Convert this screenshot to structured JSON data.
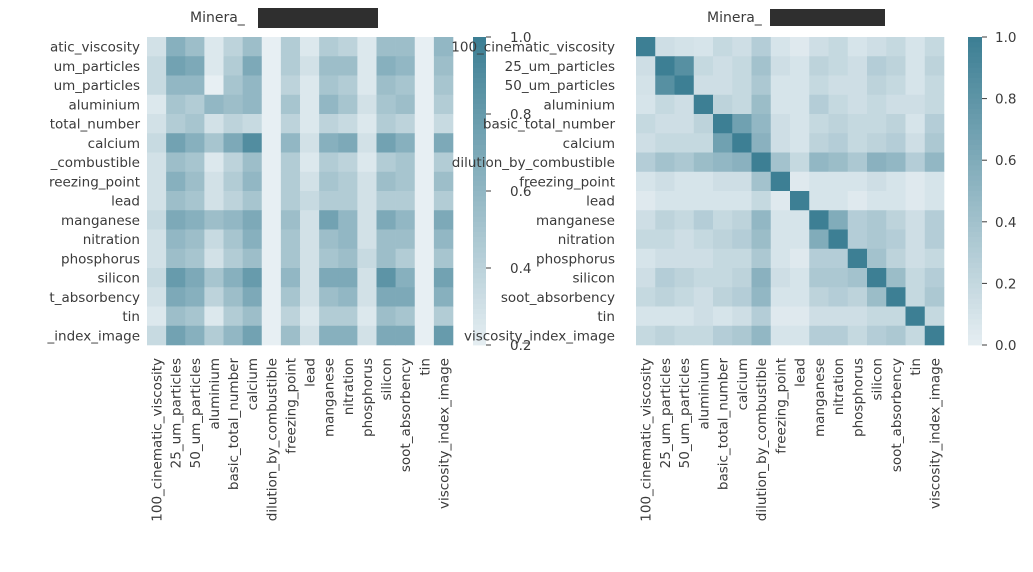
{
  "figure": {
    "background": "#ffffff",
    "panel_bg": "#e7e7f1",
    "color_low": "#e7eff3",
    "color_high": "#3d7f94",
    "title_font_color": "#3b3b3b"
  },
  "chart_data": [
    {
      "type": "heatmap",
      "title": "Minera_",
      "title_redacted": true,
      "rows": [
        "100_cinematic_viscosity",
        "25_um_particles",
        "50_um_particles",
        "aluminium",
        "basic_total_number",
        "calcium",
        "dilution_by_combustible",
        "freezing_point",
        "lead",
        "manganese",
        "nitration",
        "phosphorus",
        "silicon",
        "soot_absorbency",
        "tin",
        "viscosity_index_image"
      ],
      "cols": [
        "100_cinematic_viscosity",
        "25_um_particles",
        "50_um_particles",
        "aluminium",
        "basic_total_number",
        "calcium",
        "dilution_by_combustible",
        "freezing_point",
        "lead",
        "manganese",
        "nitration",
        "phosphorus",
        "silicon",
        "soot_absorbency",
        "tin",
        "viscosity_index_image"
      ],
      "visible_row_labels": [
        "atic_viscosity",
        "um_particles",
        "um_particles",
        "aluminium",
        "total_number",
        "calcium",
        "_combustible",
        "reezing_point",
        "lead",
        "manganese",
        "nitration",
        "phosphorus",
        "silicon",
        "t_absorbency",
        "tin",
        "_index_image"
      ],
      "colorbar": {
        "min": 0.2,
        "max": 1.0,
        "ticks": [
          "0.2",
          "0.4",
          "0.6",
          "0.8",
          "1.0"
        ]
      },
      "values": [
        [
          0.3,
          0.65,
          0.55,
          0.25,
          0.4,
          0.55,
          0.2,
          0.45,
          0.25,
          0.45,
          0.4,
          0.25,
          0.55,
          0.55,
          0.2,
          0.6
        ],
        [
          0.35,
          0.75,
          0.7,
          0.25,
          0.45,
          0.7,
          0.2,
          0.45,
          0.3,
          0.55,
          0.55,
          0.25,
          0.65,
          0.6,
          0.2,
          0.55
        ],
        [
          0.35,
          0.6,
          0.6,
          0.2,
          0.5,
          0.6,
          0.2,
          0.4,
          0.25,
          0.5,
          0.45,
          0.25,
          0.55,
          0.5,
          0.2,
          0.5
        ],
        [
          0.25,
          0.5,
          0.45,
          0.6,
          0.55,
          0.6,
          0.2,
          0.5,
          0.25,
          0.6,
          0.5,
          0.3,
          0.5,
          0.55,
          0.2,
          0.45
        ],
        [
          0.3,
          0.45,
          0.5,
          0.3,
          0.4,
          0.35,
          0.2,
          0.4,
          0.25,
          0.4,
          0.35,
          0.25,
          0.45,
          0.4,
          0.2,
          0.35
        ],
        [
          0.35,
          0.75,
          0.65,
          0.5,
          0.7,
          0.9,
          0.2,
          0.6,
          0.3,
          0.65,
          0.7,
          0.3,
          0.75,
          0.65,
          0.2,
          0.7
        ],
        [
          0.3,
          0.55,
          0.5,
          0.25,
          0.4,
          0.55,
          0.2,
          0.45,
          0.25,
          0.45,
          0.4,
          0.25,
          0.45,
          0.5,
          0.2,
          0.45
        ],
        [
          0.3,
          0.65,
          0.55,
          0.3,
          0.45,
          0.6,
          0.2,
          0.45,
          0.3,
          0.5,
          0.45,
          0.3,
          0.55,
          0.5,
          0.2,
          0.55
        ],
        [
          0.3,
          0.55,
          0.5,
          0.3,
          0.4,
          0.5,
          0.2,
          0.45,
          0.35,
          0.45,
          0.45,
          0.3,
          0.45,
          0.45,
          0.2,
          0.45
        ],
        [
          0.35,
          0.7,
          0.65,
          0.55,
          0.6,
          0.7,
          0.2,
          0.55,
          0.3,
          0.75,
          0.6,
          0.3,
          0.7,
          0.6,
          0.2,
          0.7
        ],
        [
          0.3,
          0.6,
          0.55,
          0.35,
          0.5,
          0.65,
          0.2,
          0.5,
          0.3,
          0.55,
          0.6,
          0.3,
          0.55,
          0.55,
          0.2,
          0.6
        ],
        [
          0.3,
          0.55,
          0.5,
          0.3,
          0.45,
          0.55,
          0.2,
          0.5,
          0.3,
          0.5,
          0.55,
          0.35,
          0.55,
          0.45,
          0.2,
          0.5
        ],
        [
          0.35,
          0.8,
          0.7,
          0.5,
          0.65,
          0.8,
          0.2,
          0.6,
          0.3,
          0.7,
          0.7,
          0.3,
          0.85,
          0.65,
          0.2,
          0.75
        ],
        [
          0.3,
          0.7,
          0.65,
          0.4,
          0.55,
          0.7,
          0.2,
          0.5,
          0.3,
          0.55,
          0.6,
          0.3,
          0.7,
          0.7,
          0.2,
          0.65
        ],
        [
          0.25,
          0.55,
          0.5,
          0.25,
          0.45,
          0.55,
          0.2,
          0.4,
          0.25,
          0.45,
          0.45,
          0.25,
          0.55,
          0.5,
          0.2,
          0.45
        ],
        [
          0.35,
          0.75,
          0.65,
          0.45,
          0.6,
          0.75,
          0.2,
          0.55,
          0.3,
          0.65,
          0.65,
          0.3,
          0.7,
          0.7,
          0.2,
          0.8
        ]
      ]
    },
    {
      "type": "heatmap",
      "title": "Minera_",
      "title_redacted": true,
      "rows": [
        "100_cinematic_viscosity",
        "25_um_particles",
        "50_um_particles",
        "aluminium",
        "basic_total_number",
        "calcium",
        "dilution_by_combustible",
        "freezing_point",
        "lead",
        "manganese",
        "nitration",
        "phosphorus",
        "silicon",
        "soot_absorbency",
        "tin",
        "viscosity_index_image"
      ],
      "cols": [
        "100_cinematic_viscosity",
        "25_um_particles",
        "50_um_particles",
        "aluminium",
        "basic_total_number",
        "calcium",
        "dilution_by_combustible",
        "freezing_point",
        "lead",
        "manganese",
        "nitration",
        "phosphorus",
        "silicon",
        "soot_absorbency",
        "tin",
        "viscosity_index_image"
      ],
      "visible_row_labels": [
        "100_cinematic_viscosity",
        "25_um_particles",
        "50_um_particles",
        "aluminium",
        "basic_total_number",
        "calcium",
        "dilution_by_combustible",
        "freezing_point",
        "lead",
        "manganese",
        "nitration",
        "phosphorus",
        "silicon",
        "soot_absorbency",
        "tin",
        "viscosity_index_image"
      ],
      "colorbar": {
        "min": 0.0,
        "max": 1.0,
        "ticks": [
          "0.0",
          "0.2",
          "0.4",
          "0.6",
          "0.8",
          "1.0"
        ]
      },
      "values": [
        [
          1.0,
          0.15,
          0.12,
          0.1,
          0.2,
          0.15,
          0.3,
          0.1,
          0.05,
          0.15,
          0.2,
          0.1,
          0.15,
          0.2,
          0.1,
          0.2
        ],
        [
          0.15,
          1.0,
          0.85,
          0.2,
          0.15,
          0.2,
          0.4,
          0.15,
          0.1,
          0.25,
          0.2,
          0.15,
          0.3,
          0.25,
          0.1,
          0.25
        ],
        [
          0.12,
          0.85,
          1.0,
          0.15,
          0.15,
          0.2,
          0.35,
          0.1,
          0.1,
          0.2,
          0.15,
          0.15,
          0.25,
          0.2,
          0.1,
          0.2
        ],
        [
          0.1,
          0.2,
          0.15,
          1.0,
          0.25,
          0.2,
          0.45,
          0.1,
          0.1,
          0.3,
          0.2,
          0.15,
          0.2,
          0.15,
          0.15,
          0.2
        ],
        [
          0.2,
          0.15,
          0.15,
          0.25,
          1.0,
          0.7,
          0.5,
          0.15,
          0.1,
          0.2,
          0.25,
          0.2,
          0.2,
          0.25,
          0.1,
          0.3
        ],
        [
          0.15,
          0.2,
          0.2,
          0.2,
          0.7,
          1.0,
          0.55,
          0.15,
          0.1,
          0.25,
          0.3,
          0.2,
          0.25,
          0.3,
          0.15,
          0.35
        ],
        [
          0.3,
          0.4,
          0.35,
          0.45,
          0.5,
          0.55,
          1.0,
          0.4,
          0.2,
          0.5,
          0.45,
          0.35,
          0.55,
          0.5,
          0.3,
          0.5
        ],
        [
          0.1,
          0.15,
          0.1,
          0.1,
          0.15,
          0.15,
          0.4,
          1.0,
          0.05,
          0.1,
          0.1,
          0.1,
          0.15,
          0.1,
          0.05,
          0.1
        ],
        [
          0.05,
          0.1,
          0.1,
          0.1,
          0.1,
          0.1,
          0.2,
          0.05,
          1.0,
          0.1,
          0.1,
          0.05,
          0.1,
          0.1,
          0.05,
          0.1
        ],
        [
          0.15,
          0.25,
          0.2,
          0.3,
          0.2,
          0.25,
          0.5,
          0.1,
          0.1,
          1.0,
          0.6,
          0.3,
          0.35,
          0.25,
          0.15,
          0.3
        ],
        [
          0.2,
          0.2,
          0.15,
          0.2,
          0.25,
          0.3,
          0.45,
          0.1,
          0.1,
          0.6,
          1.0,
          0.3,
          0.35,
          0.3,
          0.15,
          0.3
        ],
        [
          0.1,
          0.15,
          0.15,
          0.15,
          0.2,
          0.2,
          0.35,
          0.1,
          0.05,
          0.3,
          0.3,
          1.0,
          0.4,
          0.25,
          0.15,
          0.2
        ],
        [
          0.15,
          0.3,
          0.25,
          0.2,
          0.2,
          0.25,
          0.55,
          0.15,
          0.1,
          0.35,
          0.35,
          0.4,
          1.0,
          0.45,
          0.2,
          0.3
        ],
        [
          0.2,
          0.25,
          0.2,
          0.15,
          0.25,
          0.3,
          0.5,
          0.1,
          0.1,
          0.25,
          0.3,
          0.25,
          0.45,
          1.0,
          0.2,
          0.35
        ],
        [
          0.1,
          0.1,
          0.1,
          0.15,
          0.1,
          0.15,
          0.3,
          0.05,
          0.05,
          0.15,
          0.15,
          0.15,
          0.2,
          0.2,
          1.0,
          0.2
        ],
        [
          0.2,
          0.25,
          0.2,
          0.2,
          0.3,
          0.35,
          0.5,
          0.1,
          0.1,
          0.3,
          0.3,
          0.2,
          0.3,
          0.35,
          0.2,
          1.0
        ]
      ]
    }
  ]
}
